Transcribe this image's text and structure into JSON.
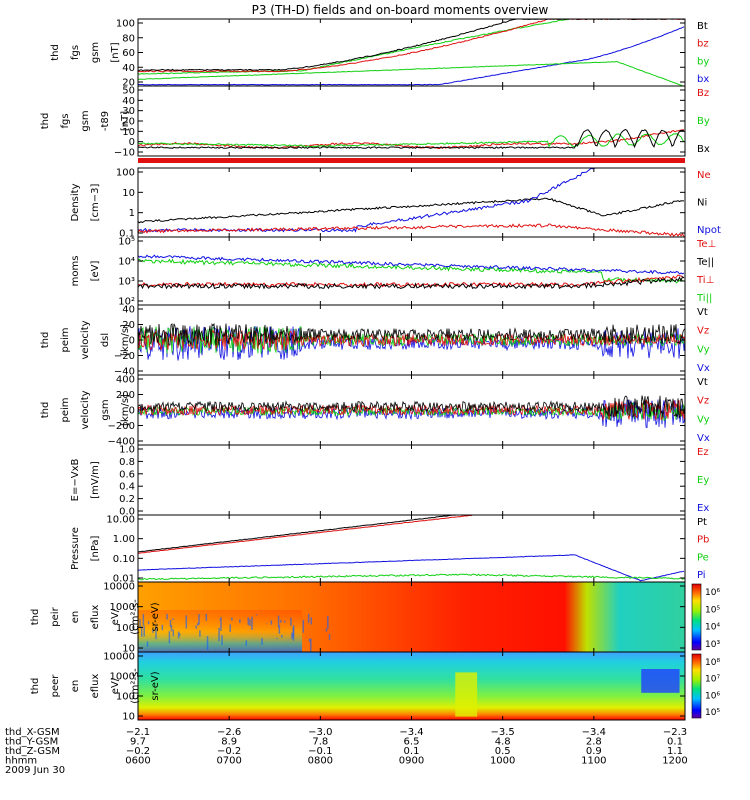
{
  "title": "P3 (TH-D) fields and on-board moments overview",
  "colors": {
    "black": "#000000",
    "red": "#e01010",
    "green": "#10d010",
    "blue": "#1010e0"
  },
  "chart_data": [
    {
      "type": "line",
      "ylabel": [
        "thd",
        "fgs",
        "gsm",
        "[nT]"
      ],
      "yticks": [
        "100",
        "80",
        "60",
        "40",
        "20"
      ],
      "legend": [
        {
          "name": "Bt",
          "color": "#000000"
        },
        {
          "name": "bz",
          "color": "#e01010"
        },
        {
          "name": "by",
          "color": "#10d010"
        },
        {
          "name": "bx",
          "color": "#1010e0"
        }
      ]
    },
    {
      "type": "line",
      "ylabel": [
        "thd",
        "fgs",
        "gsm",
        "-t89",
        "[nT]"
      ],
      "yticks": [
        "50",
        "40",
        "30",
        "20",
        "10",
        "0",
        "−10"
      ],
      "legend": [
        {
          "name": "Bz",
          "color": "#e01010"
        },
        {
          "name": "By",
          "color": "#10d010"
        },
        {
          "name": "Bx",
          "color": "#000000"
        }
      ]
    },
    {
      "type": "line",
      "ylabel": [
        "Density",
        "[cm−3]"
      ],
      "yticks": [
        "100",
        "10",
        "1",
        "0.1"
      ],
      "scale": "log",
      "legend": [
        {
          "name": "Ne",
          "color": "#e01010"
        },
        {
          "name": "Ni",
          "color": "#000000"
        },
        {
          "name": "Npot",
          "color": "#1010e0"
        }
      ]
    },
    {
      "type": "line",
      "ylabel": [
        "moms",
        "[eV]"
      ],
      "yticks": [
        "10⁵",
        "10⁴",
        "10³",
        "10²"
      ],
      "scale": "log",
      "legend": [
        {
          "name": "Te⊥",
          "color": "#e01010"
        },
        {
          "name": "Te||",
          "color": "#000000"
        },
        {
          "name": "Ti⊥",
          "color": "#e01010"
        },
        {
          "name": "Ti||",
          "color": "#10d010"
        }
      ]
    },
    {
      "type": "line",
      "ylabel": [
        "thd",
        "peim",
        "velocity",
        "dsl",
        "[km/s]"
      ],
      "yticks": [
        "40",
        "20",
        "0",
        "−20",
        "−40"
      ],
      "legend": [
        {
          "name": "Vt",
          "color": "#000000"
        },
        {
          "name": "Vz",
          "color": "#e01010"
        },
        {
          "name": "Vy",
          "color": "#10d010"
        },
        {
          "name": "Vx",
          "color": "#1010e0"
        }
      ]
    },
    {
      "type": "line",
      "ylabel": [
        "thd",
        "peim",
        "velocity",
        "gsm",
        "[km/s]"
      ],
      "yticks": [
        "400",
        "200",
        "0",
        "−200",
        "−400"
      ],
      "legend": [
        {
          "name": "Vt",
          "color": "#000000"
        },
        {
          "name": "Vz",
          "color": "#e01010"
        },
        {
          "name": "Vy",
          "color": "#10d010"
        },
        {
          "name": "Vx",
          "color": "#1010e0"
        }
      ]
    },
    {
      "type": "line",
      "ylabel": [
        "E=−VxB",
        "[mV/m]"
      ],
      "yticks": [
        "1.0",
        "0.8",
        "0.6",
        "0.4",
        "0.2",
        "0.0"
      ],
      "legend": [
        {
          "name": "Ez",
          "color": "#e01010"
        },
        {
          "name": "Ey",
          "color": "#10d010"
        },
        {
          "name": "Ex",
          "color": "#1010e0"
        }
      ]
    },
    {
      "type": "line",
      "ylabel": [
        "Pressure",
        "[nPa]"
      ],
      "yticks": [
        "10.00",
        "1.00",
        "0.10",
        "0.01"
      ],
      "scale": "log",
      "legend": [
        {
          "name": "Pt",
          "color": "#000000"
        },
        {
          "name": "Pb",
          "color": "#e01010"
        },
        {
          "name": "Pe",
          "color": "#10d010"
        },
        {
          "name": "Pi",
          "color": "#1010e0"
        }
      ]
    },
    {
      "type": "heatmap",
      "ylabel": [
        "thd",
        "peir",
        "en",
        "eflux",
        "eV/",
        "(cm²-s-",
        "sr-eV)"
      ],
      "yticks": [
        "10000",
        "1000",
        "100",
        "10"
      ],
      "colorbar": [
        "10⁶",
        "10⁵",
        "10⁴",
        "10³"
      ]
    },
    {
      "type": "heatmap",
      "ylabel": [
        "thd",
        "peer",
        "en",
        "eflux",
        "eV/",
        "(cm²-s-",
        "sr-eV)"
      ],
      "yticks": [
        "10000",
        "1000",
        "100",
        "10"
      ],
      "colorbar": [
        "10⁸",
        "10⁷",
        "10⁶",
        "10⁵"
      ]
    }
  ],
  "xaxis": {
    "rows": [
      {
        "label": "thd_X-GSM",
        "values": [
          "−2.1",
          "−2.6",
          "−3.0",
          "−3.4",
          "−3.5",
          "−3.4",
          "−2.3"
        ]
      },
      {
        "label": "thd_Y-GSM",
        "values": [
          "9.7",
          "8.9",
          "7.8",
          "6.5",
          "4.8",
          "2.8",
          "0.1"
        ]
      },
      {
        "label": "thd_Z-GSM",
        "values": [
          "−0.2",
          "−0.2",
          "−0.1",
          "0.1",
          "0.5",
          "0.9",
          "1.1"
        ]
      },
      {
        "label": "hhmm",
        "values": [
          "0600",
          "0700",
          "0800",
          "0900",
          "1000",
          "1100",
          "1200"
        ]
      }
    ],
    "date": "2009 Jun 30"
  }
}
